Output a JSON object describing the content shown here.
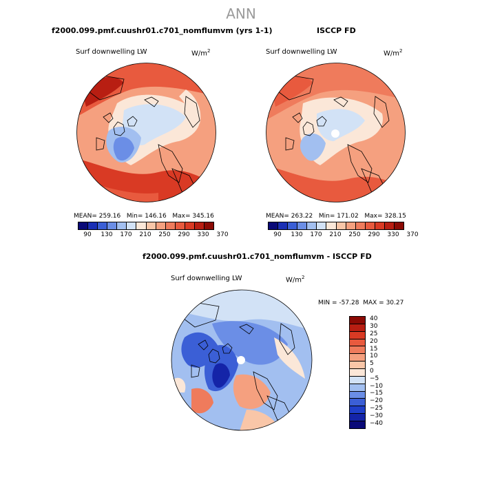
{
  "page": {
    "season": "ANN"
  },
  "panels": [
    {
      "title": "f2000.099.pmf.cuushr01.c701_nomflumvm (yrs 1-1)",
      "variable": "Surf downwelling LW",
      "units": "W/m",
      "units_exp": "2",
      "mean_label": "MEAN=",
      "mean": "259.16",
      "min_label": "Min=",
      "min": "146.16",
      "max_label": "Max=",
      "max": "345.16"
    },
    {
      "title": "ISCCP FD",
      "variable": "Surf downwelling LW",
      "units": "W/m",
      "units_exp": "2",
      "mean_label": "MEAN=",
      "mean": "263.22",
      "min_label": "Min=",
      "min": "171.02",
      "max_label": "Max=",
      "max": "328.15"
    }
  ],
  "abs_colorbar": {
    "colors": [
      "#0a0a78",
      "#1a2fb5",
      "#3b5fd6",
      "#6b8ee6",
      "#a2bff0",
      "#d2e2f6",
      "#fbe7d8",
      "#f9c6a8",
      "#f5a07f",
      "#ef7b5c",
      "#e85a3e",
      "#d93a24",
      "#b81e12",
      "#8b0a04"
    ],
    "ticks": [
      "90",
      "130",
      "170",
      "210",
      "250",
      "290",
      "330",
      "370"
    ]
  },
  "diff_panel": {
    "title": "f2000.099.pmf.cuushr01.c701_nomflumvm - ISCCP FD",
    "variable": "Surf downwelling LW",
    "units": "W/m",
    "units_exp": "2",
    "min_label": "MIN =",
    "min": "-57.28",
    "max_label": "MAX =",
    "max": "30.27"
  },
  "diff_colorbar": {
    "colors": [
      "#8b0a04",
      "#b81e12",
      "#d93a24",
      "#e85a3e",
      "#ef7b5c",
      "#f5a07f",
      "#f9c6a8",
      "#fbe7d8",
      "#d2e2f6",
      "#a2bff0",
      "#6b8ee6",
      "#3b5fd6",
      "#1f3fc9",
      "#1424a8",
      "#0a0a78"
    ],
    "labels": [
      "40",
      "30",
      "25",
      "20",
      "15",
      "10",
      "5",
      "0",
      "−5",
      "−10",
      "−15",
      "−20",
      "−25",
      "−30",
      "−40"
    ]
  }
}
